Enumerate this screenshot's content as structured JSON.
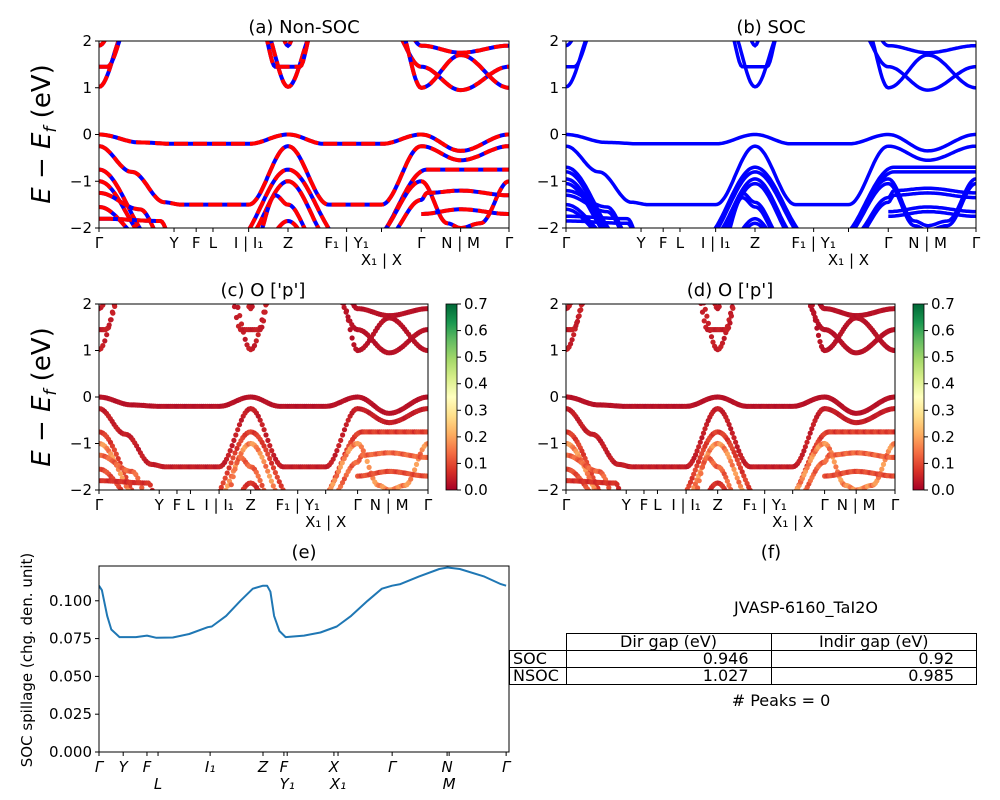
{
  "chart_data": {
    "type": "line",
    "band_structure": {
      "ylabel": {
        "main": "E − E",
        "sub": "f",
        "unit": " (eV)"
      },
      "ylim": [
        -2,
        2
      ],
      "yticks": [
        {
          "v": -2,
          "label": "−2"
        },
        {
          "v": -1,
          "label": "−1"
        },
        {
          "v": 0,
          "label": "0"
        },
        {
          "v": 1,
          "label": "1"
        },
        {
          "v": 2,
          "label": "2"
        }
      ],
      "kpath_ticks": [
        {
          "k": 0,
          "label": "Γ"
        },
        {
          "k": 0.183,
          "label": "Y"
        },
        {
          "k": 0.237,
          "label": "F"
        },
        {
          "k": 0.278,
          "label": "L"
        },
        {
          "k": 0.365,
          "label": "I | I₁"
        },
        {
          "k": 0.461,
          "label": "Z"
        },
        {
          "k": 0.604,
          "label": "F₁ | Y₁"
        },
        {
          "k": 0.689,
          "label": "X₁ | X"
        },
        {
          "k": 0.786,
          "label": "Γ"
        },
        {
          "k": 0.882,
          "label": "N | M"
        },
        {
          "k": 1,
          "label": "Γ"
        }
      ],
      "bands": [
        {
          "w": 0.03,
          "segs": [
            [
              [
                0,
                0
              ],
              [
                0.1,
                -0.17
              ],
              [
                0.183,
                -0.2
              ],
              [
                0.365,
                -0.2
              ],
              [
                0.461,
                0
              ],
              [
                0.55,
                -0.2
              ],
              [
                0.689,
                -0.2
              ],
              [
                0.786,
                0
              ],
              [
                0.882,
                -0.35
              ],
              [
                1,
                0
              ]
            ]
          ]
        },
        {
          "w": 0.05,
          "segs": [
            [
              [
                0,
                -0.25
              ],
              [
                0.08,
                -0.8
              ],
              [
                0.16,
                -1.45
              ],
              [
                0.2,
                -1.5
              ],
              [
                0.365,
                -1.5
              ],
              [
                0.461,
                -0.25
              ],
              [
                0.56,
                -1.5
              ],
              [
                0.689,
                -1.5
              ],
              [
                0.786,
                -0.25
              ],
              [
                0.882,
                -0.55
              ],
              [
                1,
                -0.25
              ]
            ]
          ]
        },
        {
          "w": 0.1,
          "segs": [
            [
              [
                0,
                -0.75
              ],
              [
                0.14,
                -2.3
              ]
            ],
            [
              [
                0.33,
                -2.3
              ],
              [
                0.461,
                -0.75
              ],
              [
                0.6,
                -2.3
              ]
            ],
            [
              [
                0.66,
                -2.3
              ],
              [
                0.8,
                -0.75
              ],
              [
                1,
                -0.75
              ]
            ]
          ]
        },
        {
          "w": 0.2,
          "segs": [
            [
              [
                0,
                -1.0
              ],
              [
                0.13,
                -2.3
              ]
            ],
            [
              [
                0.35,
                -2.3
              ],
              [
                0.461,
                -1.0
              ],
              [
                0.57,
                -2.3
              ]
            ],
            [
              [
                0.67,
                -2.2
              ],
              [
                0.786,
                -1.0
              ],
              [
                0.85,
                -1.9
              ],
              [
                0.882,
                -2.0
              ],
              [
                0.93,
                -1.9
              ],
              [
                1,
                -1.0
              ]
            ]
          ]
        },
        {
          "w": 0.15,
          "segs": [
            [
              [
                0,
                -1.25
              ],
              [
                0.1,
                -1.6
              ],
              [
                0.16,
                -2.3
              ]
            ],
            [
              [
                0.38,
                -2.3
              ],
              [
                0.43,
                -1.3
              ],
              [
                0.461,
                -1.5
              ],
              [
                0.53,
                -2.3
              ]
            ],
            [
              [
                0.7,
                -2.2
              ],
              [
                0.786,
                -1.4
              ],
              [
                0.8,
                -1.25
              ],
              [
                0.882,
                -1.2
              ],
              [
                1,
                -1.3
              ]
            ]
          ]
        },
        {
          "w": 0.12,
          "segs": [
            [
              [
                0,
                -1.55
              ],
              [
                0.12,
                -2.3
              ]
            ],
            [
              [
                0.786,
                -1.7
              ],
              [
                0.882,
                -1.6
              ],
              [
                1,
                -1.7
              ]
            ]
          ]
        },
        {
          "w": 0.08,
          "segs": [
            [
              [
                0,
                -1.8
              ],
              [
                0.15,
                -1.85
              ],
              [
                0.18,
                -2.3
              ]
            ],
            [
              [
                0.4,
                -2.3
              ],
              [
                0.461,
                -1.85
              ],
              [
                0.52,
                -2.3
              ]
            ]
          ]
        },
        {
          "w": 0.05,
          "segs": [
            [
              [
                0,
                1.02
              ],
              [
                0.07,
                2.3
              ]
            ]
          ]
        },
        {
          "w": 0.05,
          "segs": [
            [
              [
                0,
                1.45
              ],
              [
                0.02,
                1.45
              ],
              [
                0.07,
                2.3
              ]
            ]
          ]
        },
        {
          "w": 0.05,
          "segs": [
            [
              [
                0,
                1.9
              ],
              [
                0.04,
                2.3
              ]
            ]
          ]
        },
        {
          "w": 0.05,
          "segs": [
            [
              [
                0.4,
                2.3
              ],
              [
                0.461,
                1.02
              ],
              [
                0.53,
                2.3
              ]
            ]
          ]
        },
        {
          "w": 0.05,
          "segs": [
            [
              [
                0.4,
                2.2
              ],
              [
                0.43,
                1.45
              ],
              [
                0.49,
                1.45
              ],
              [
                0.52,
                2.2
              ]
            ]
          ]
        },
        {
          "w": 0.05,
          "segs": [
            [
              [
                0.44,
                2.2
              ],
              [
                0.461,
                1.9
              ],
              [
                0.48,
                2.2
              ]
            ]
          ]
        },
        {
          "w": 0.03,
          "segs": [
            [
              [
                0.71,
                2.3
              ],
              [
                0.786,
                1.45
              ],
              [
                0.882,
                0.95
              ],
              [
                1,
                1.45
              ]
            ]
          ]
        },
        {
          "w": 0.03,
          "segs": [
            [
              [
                0.73,
                2.3
              ],
              [
                0.786,
                1.0
              ],
              [
                0.882,
                1.7
              ],
              [
                1,
                1.0
              ]
            ]
          ]
        },
        {
          "w": 0.03,
          "segs": [
            [
              [
                0.75,
                2.2
              ],
              [
                0.786,
                1.9
              ],
              [
                0.882,
                1.75
              ],
              [
                1,
                1.9
              ]
            ]
          ]
        }
      ]
    },
    "panels": [
      {
        "id": "a",
        "title": "(a) Non-SOC",
        "style": "nonsoc",
        "colors": [
          "#ff0000",
          "#0000ff"
        ]
      },
      {
        "id": "b",
        "title": "(b) SOC",
        "style": "soc",
        "colors": [
          "#0000ff"
        ]
      },
      {
        "id": "c",
        "title": "(c)  O ['p']",
        "style": "proj"
      },
      {
        "id": "d",
        "title": "(d) O ['p']",
        "style": "proj"
      }
    ],
    "colorbar": {
      "cmap": [
        "#a50026",
        "#d73027",
        "#f46d43",
        "#fdae61",
        "#fee08b",
        "#ffffbf",
        "#d9ef8b",
        "#a6d96a",
        "#66bd63",
        "#1a9850",
        "#006837"
      ],
      "range": [
        0,
        0.7
      ],
      "ticks": [
        "0.0",
        "0.1",
        "0.2",
        "0.3",
        "0.4",
        "0.5",
        "0.6",
        "0.7"
      ]
    },
    "spillage": {
      "title": "(e)",
      "ylabel": "SOC spillage (chg. den. unit)",
      "ylim": [
        0,
        0.123
      ],
      "color": "#1f77b4",
      "yticks": [
        {
          "v": 0,
          "label": "0.000"
        },
        {
          "v": 0.025,
          "label": "0.025"
        },
        {
          "v": 0.05,
          "label": "0.050"
        },
        {
          "v": 0.075,
          "label": "0.075"
        },
        {
          "v": 0.1,
          "label": "0.100"
        }
      ],
      "xticks": [
        {
          "k": 0,
          "label": "Γ"
        },
        {
          "k": 0.059,
          "label": "Y"
        },
        {
          "k": 0.117,
          "label": "F"
        },
        {
          "k": 0.144,
          "label": "L"
        },
        {
          "k": 0.271,
          "label": "I₁"
        },
        {
          "k": 0.4,
          "label": "Z"
        },
        {
          "k": 0.451,
          "label": "F"
        },
        {
          "k": 0.459,
          "label": "Y₁"
        },
        {
          "k": 0.573,
          "label": "X"
        },
        {
          "k": 0.583,
          "label": "X₁"
        },
        {
          "k": 0.715,
          "label": "Γ"
        },
        {
          "k": 0.849,
          "label": "N"
        },
        {
          "k": 0.854,
          "label": "M"
        },
        {
          "k": 0.993,
          "label": "Γ"
        }
      ],
      "points": [
        [
          0,
          0.11
        ],
        [
          0.007,
          0.107
        ],
        [
          0.02,
          0.09
        ],
        [
          0.03,
          0.081
        ],
        [
          0.05,
          0.076
        ],
        [
          0.09,
          0.076
        ],
        [
          0.117,
          0.077
        ],
        [
          0.14,
          0.0755
        ],
        [
          0.18,
          0.0757
        ],
        [
          0.22,
          0.078
        ],
        [
          0.265,
          0.0825
        ],
        [
          0.275,
          0.083
        ],
        [
          0.31,
          0.09
        ],
        [
          0.345,
          0.1
        ],
        [
          0.375,
          0.108
        ],
        [
          0.4,
          0.11
        ],
        [
          0.41,
          0.11
        ],
        [
          0.418,
          0.106
        ],
        [
          0.427,
          0.09
        ],
        [
          0.44,
          0.08
        ],
        [
          0.455,
          0.076
        ],
        [
          0.5,
          0.077
        ],
        [
          0.54,
          0.079
        ],
        [
          0.57,
          0.082
        ],
        [
          0.58,
          0.083
        ],
        [
          0.615,
          0.09
        ],
        [
          0.655,
          0.1
        ],
        [
          0.69,
          0.108
        ],
        [
          0.715,
          0.11
        ],
        [
          0.735,
          0.111
        ],
        [
          0.78,
          0.116
        ],
        [
          0.83,
          0.121
        ],
        [
          0.85,
          0.122
        ],
        [
          0.88,
          0.121
        ],
        [
          0.94,
          0.116
        ],
        [
          0.98,
          0.111
        ],
        [
          0.993,
          0.11
        ]
      ]
    },
    "summary": {
      "title": "(f)",
      "material": "JVASP-6160_TaI2O",
      "columns": [
        "Dir gap (eV)",
        "Indir gap (eV)"
      ],
      "rows": [
        {
          "label": "SOC",
          "dir": "0.946",
          "indir": "0.92"
        },
        {
          "label": "NSOC",
          "dir": "1.027",
          "indir": "0.985"
        }
      ],
      "peaks": "# Peaks = 0"
    }
  }
}
